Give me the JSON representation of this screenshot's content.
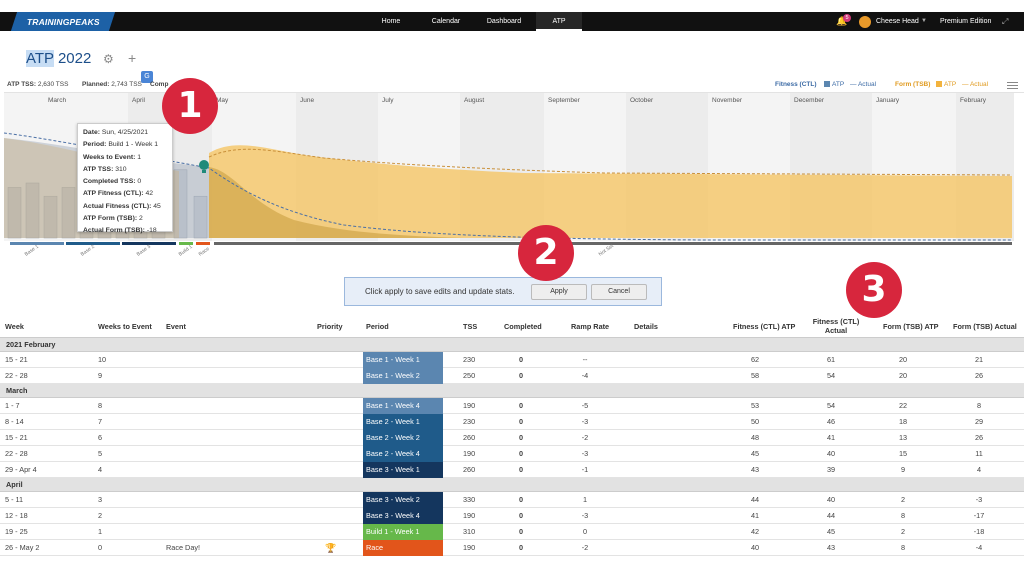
{
  "nav": {
    "logo": "TRAININGPEAKS",
    "items": [
      {
        "label": "Home",
        "active": false
      },
      {
        "label": "Calendar",
        "active": false
      },
      {
        "label": "Dashboard",
        "active": false
      },
      {
        "label": "ATP",
        "active": true
      }
    ],
    "notifications": "5",
    "user": "Cheese Head",
    "edition": "Premium Edition"
  },
  "header": {
    "title_hl": "ATP",
    "title_rest": " 2022"
  },
  "stats": {
    "atp_tss_label": "ATP TSS:",
    "atp_tss_value": "2,630 TSS",
    "planned_label": "Planned:",
    "planned_value": "2,743 TSS",
    "completed_label": "Comp"
  },
  "legend": {
    "fitness_label": "Fitness (CTL)",
    "fitness_atp": "ATP",
    "fitness_actual": "Actual",
    "form_label": "Form (TSB)",
    "form_atp": "ATP",
    "form_actual": "Actual"
  },
  "colors": {
    "base1": "#5b86b0",
    "base2": "#1f5b8a",
    "base3": "#14365e",
    "build": "#66b84a",
    "race": "#e2551b",
    "fitness": "#4a6fa5",
    "form": "#f3b33d",
    "callout": "#d7263d"
  },
  "chart_data": {
    "type": "area",
    "months": [
      "March",
      "April",
      "May",
      "June",
      "July",
      "August",
      "September",
      "October",
      "November",
      "December",
      "January",
      "February"
    ],
    "phase_labels": [
      "Base 1",
      "Base 2",
      "Base 3",
      "Build 1",
      "Race",
      "Not Set"
    ],
    "weekly_tss_bars": [
      230,
      250,
      190,
      230,
      260,
      190,
      260,
      330,
      190,
      310,
      190
    ]
  },
  "tooltip": [
    {
      "label": "Date:",
      "value": "Sun, 4/25/2021"
    },
    {
      "label": "Period:",
      "value": "Build 1 - Week 1"
    },
    {
      "label": "Weeks to Event:",
      "value": "1"
    },
    {
      "label": "ATP TSS:",
      "value": "310"
    },
    {
      "label": "Completed TSS:",
      "value": "0"
    },
    {
      "label": "ATP Fitness (CTL):",
      "value": "42"
    },
    {
      "label": "Actual Fitness (CTL):",
      "value": "45"
    },
    {
      "label": "ATP Form (TSB):",
      "value": "2"
    },
    {
      "label": "Actual Form (TSB):",
      "value": "-18"
    }
  ],
  "callouts": [
    "1",
    "2",
    "3"
  ],
  "toolbar": {
    "message": "Click apply to save edits and update stats.",
    "apply": "Apply",
    "cancel": "Cancel"
  },
  "table": {
    "headers": {
      "week": "Week",
      "weeks_to_event": "Weeks to Event",
      "event": "Event",
      "priority": "Priority",
      "period": "Period",
      "tss": "TSS",
      "completed": "Completed",
      "ramp_rate": "Ramp Rate",
      "details": "Details",
      "fitness_atp": "Fitness (CTL) ATP",
      "fitness_actual": "Fitness (CTL) Actual",
      "form_atp": "Form (TSB) ATP",
      "form_actual": "Form (TSB) Actual"
    },
    "sections": [
      {
        "label": "2021 February",
        "rows": [
          {
            "week": "15 - 21",
            "wte": "10",
            "event": "",
            "priority": false,
            "period": "Base 1 - Week 1",
            "phase": "base1",
            "tss": "230",
            "completed": "0",
            "ramp": "--",
            "f_atp": "62",
            "f_act": "61",
            "t_atp": "20",
            "t_act": "21"
          },
          {
            "week": "22 - 28",
            "wte": "9",
            "event": "",
            "priority": false,
            "period": "Base 1 - Week 2",
            "phase": "base1",
            "tss": "250",
            "completed": "0",
            "ramp": "-4",
            "f_atp": "58",
            "f_act": "54",
            "t_atp": "20",
            "t_act": "26"
          }
        ]
      },
      {
        "label": "March",
        "rows": [
          {
            "week": "1 - 7",
            "wte": "8",
            "event": "",
            "priority": false,
            "period": "Base 1 - Week 4",
            "phase": "base1",
            "tss": "190",
            "completed": "0",
            "ramp": "-5",
            "f_atp": "53",
            "f_act": "54",
            "t_atp": "22",
            "t_act": "8"
          },
          {
            "week": "8 - 14",
            "wte": "7",
            "event": "",
            "priority": false,
            "period": "Base 2 - Week 1",
            "phase": "base2",
            "tss": "230",
            "completed": "0",
            "ramp": "-3",
            "f_atp": "50",
            "f_act": "46",
            "t_atp": "18",
            "t_act": "29"
          },
          {
            "week": "15 - 21",
            "wte": "6",
            "event": "",
            "priority": false,
            "period": "Base 2 - Week 2",
            "phase": "base2",
            "tss": "260",
            "completed": "0",
            "ramp": "-2",
            "f_atp": "48",
            "f_act": "41",
            "t_atp": "13",
            "t_act": "26"
          },
          {
            "week": "22 - 28",
            "wte": "5",
            "event": "",
            "priority": false,
            "period": "Base 2 - Week 4",
            "phase": "base2",
            "tss": "190",
            "completed": "0",
            "ramp": "-3",
            "f_atp": "45",
            "f_act": "40",
            "t_atp": "15",
            "t_act": "11"
          },
          {
            "week": "29 - Apr 4",
            "wte": "4",
            "event": "",
            "priority": false,
            "period": "Base 3 - Week 1",
            "phase": "base3",
            "tss": "260",
            "completed": "0",
            "ramp": "-1",
            "f_atp": "43",
            "f_act": "39",
            "t_atp": "9",
            "t_act": "4"
          }
        ]
      },
      {
        "label": "April",
        "rows": [
          {
            "week": "5 - 11",
            "wte": "3",
            "event": "",
            "priority": false,
            "period": "Base 3 - Week 2",
            "phase": "base3",
            "tss": "330",
            "completed": "0",
            "ramp": "1",
            "f_atp": "44",
            "f_act": "40",
            "t_atp": "2",
            "t_act": "-3"
          },
          {
            "week": "12 - 18",
            "wte": "2",
            "event": "",
            "priority": false,
            "period": "Base 3 - Week 4",
            "phase": "base3",
            "tss": "190",
            "completed": "0",
            "ramp": "-3",
            "f_atp": "41",
            "f_act": "44",
            "t_atp": "8",
            "t_act": "-17"
          },
          {
            "week": "19 - 25",
            "wte": "1",
            "event": "",
            "priority": false,
            "period": "Build 1 - Week 1",
            "phase": "build",
            "tss": "310",
            "completed": "0",
            "ramp": "0",
            "f_atp": "42",
            "f_act": "45",
            "t_atp": "2",
            "t_act": "-18"
          },
          {
            "week": "26 - May 2",
            "wte": "0",
            "event": "Race Day!",
            "priority": true,
            "period": "Race",
            "phase": "race",
            "tss": "190",
            "completed": "0",
            "ramp": "-2",
            "f_atp": "40",
            "f_act": "43",
            "t_atp": "8",
            "t_act": "-4"
          }
        ]
      }
    ]
  }
}
